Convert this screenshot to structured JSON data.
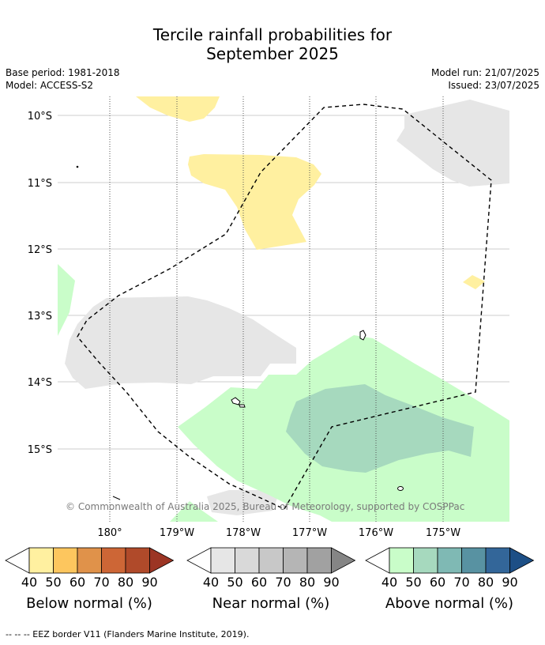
{
  "title_line1": "Tercile rainfall probabilities for",
  "title_line2": "September 2025",
  "base_period": "Base period: 1981-2018",
  "model": "Model: ACCESS-S2",
  "model_run": "Model run: 21/07/2025",
  "issued": "Issued: 23/07/2025",
  "lat_labels": [
    "10°S",
    "11°S",
    "12°S",
    "13°S",
    "14°S",
    "15°S"
  ],
  "lon_labels": [
    "180°",
    "179°W",
    "178°W",
    "177°W",
    "176°W",
    "175°W"
  ],
  "copyright": "© Commonwealth of Australia 2025, Bureau of Meteorology, supported by COSPPac",
  "legends": [
    {
      "caption": "Below normal (%)",
      "ticks": [
        "40",
        "50",
        "60",
        "70",
        "80",
        "90"
      ],
      "colors": [
        "#fff0a0",
        "#fdc65e",
        "#e0924a",
        "#cd6636",
        "#b04a2a",
        "#9c3524"
      ]
    },
    {
      "caption": "Near normal (%)",
      "ticks": [
        "40",
        "50",
        "60",
        "70",
        "80",
        "90"
      ],
      "colors": [
        "#e6e6e6",
        "#d9d9d9",
        "#c8c8c8",
        "#b5b5b5",
        "#a1a1a1",
        "#858585"
      ]
    },
    {
      "caption": "Above normal (%)",
      "ticks": [
        "40",
        "50",
        "60",
        "70",
        "80",
        "90"
      ],
      "colors": [
        "#c9fdc9",
        "#a6d9be",
        "#7fb9b4",
        "#5892a2",
        "#336699",
        "#1d4f86"
      ]
    }
  ],
  "footnote": "-- -- -- EEZ border V11 (Flanders Marine Institute, 2019).",
  "colors": {
    "below40": "#fff0a0",
    "near40": "#e6e6e6",
    "above40": "#c9fdc9",
    "above50": "#a6d9be",
    "grid": "#bdbdbd"
  }
}
